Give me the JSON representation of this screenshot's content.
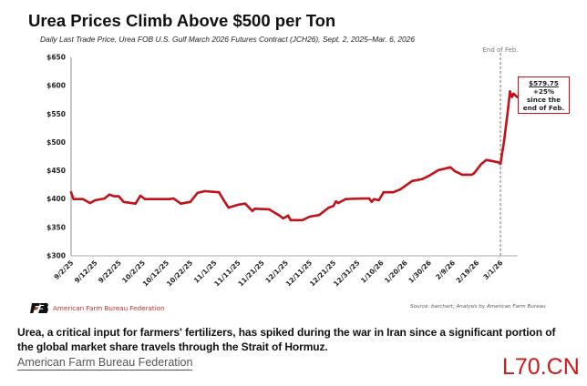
{
  "chart_data": {
    "type": "line",
    "title": "Urea Prices Climb Above $500 per Ton",
    "subtitle": "Daily Last Trade Price, Urea FOB U.S. Gulf March 2026 Futures Contract (JCH26), Sept. 2, 2025–Mar. 6, 2026",
    "xlabel": "",
    "ylabel": "",
    "ylim": [
      300,
      650
    ],
    "yticks": [
      650,
      600,
      550,
      500,
      450,
      400,
      350,
      300
    ],
    "ytick_labels": [
      "$650",
      "$600",
      "$550",
      "$500",
      "$450",
      "$400",
      "$350",
      "$300"
    ],
    "xlim_days": [
      0,
      186
    ],
    "xtick_labels": [
      "9/2/25",
      "9/12/25",
      "9/22/25",
      "10/2/25",
      "10/12/25",
      "10/22/25",
      "11/1/25",
      "11/11/25",
      "11/21/25",
      "12/1/25",
      "12/11/25",
      "12/21/25",
      "12/31/25",
      "1/10/26",
      "1/20/26",
      "1/30/26",
      "2/9/26",
      "2/19/26",
      "3/1/26"
    ],
    "xtick_days": [
      0,
      10,
      20,
      30,
      40,
      50,
      60,
      70,
      80,
      90,
      100,
      110,
      120,
      130,
      140,
      150,
      160,
      170,
      180
    ],
    "grid": false,
    "color": "#c0121a",
    "series": [
      {
        "name": "Urea FOB U.S. Gulf March 2026 Futures (JCH26)",
        "days": [
          0,
          1,
          5,
          8,
          10,
          14,
          16,
          18,
          20,
          22,
          27,
          29,
          31,
          41,
          43,
          46,
          50,
          53,
          56,
          62,
          64,
          66,
          70,
          73,
          76,
          77,
          83,
          87,
          89,
          91,
          92,
          97,
          100,
          104,
          108,
          110,
          111,
          112,
          115,
          122,
          125,
          126,
          127,
          129,
          131,
          135,
          138,
          143,
          147,
          150,
          154,
          159,
          161,
          164,
          168,
          169,
          172,
          174,
          179,
          180,
          181.5,
          183,
          184,
          184.8,
          185.5,
          187
        ],
        "values": [
          412,
          400,
          400,
          393,
          398,
          401,
          408,
          405,
          405,
          395,
          392,
          406,
          400,
          400,
          401,
          392,
          395,
          411,
          414,
          412,
          398,
          385,
          390,
          392,
          379,
          383,
          382,
          372,
          366,
          371,
          363,
          363,
          369,
          372,
          385,
          388,
          396,
          393,
          400,
          401,
          401,
          395,
          400,
          398,
          412,
          412,
          417,
          432,
          435,
          441,
          451,
          456,
          449,
          443,
          443,
          446,
          462,
          469,
          465,
          462,
          502,
          552,
          590,
          580,
          586,
          580
        ]
      }
    ],
    "annotations": {
      "vline_label": "End of Feb.",
      "vline_day": 180,
      "callout_price": "$579.75",
      "callout_change": "+25%",
      "callout_line3": "since the",
      "callout_line4": "end of Feb."
    }
  },
  "footer": {
    "logo_text": "American Farm Bureau Federation",
    "source": "Source: barchart; Analysis by American Farm Bureau"
  },
  "caption": "Urea, a critical input for farmers' fertilizers, has spiked during the war in Iran since a significant portion of the global market share travels through the Strait of Hormuz.",
  "credit": "American Farm Bureau Federation",
  "watermark": "L70.CN"
}
